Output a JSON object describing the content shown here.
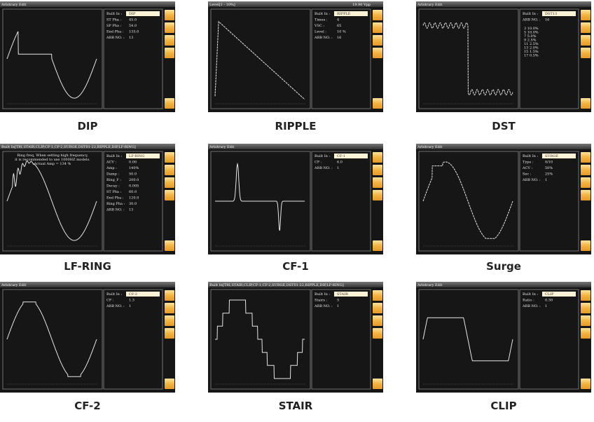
{
  "panels": [
    {
      "caption": "DIP",
      "screen": {
        "title": "Arbitrary Edit",
        "fields": [
          {
            "label": "Built In :",
            "value": "DIP"
          },
          {
            "label": "ST Pha :",
            "value": "45.0"
          },
          {
            "label": "SP Pha :",
            "value": "54.0"
          },
          {
            "label": "End Pha :",
            "value": "135.0"
          },
          {
            "label": "ARB NO. :",
            "value": "13"
          }
        ]
      }
    },
    {
      "caption": "RIPPLE",
      "screen": {
        "title": "Level[1 - 10%]",
        "title_right": "19.90 Vpp",
        "fields": [
          {
            "label": "Built In :",
            "value": "RIPPLE"
          },
          {
            "label": "Times :",
            "value": "4"
          },
          {
            "label": "VSC :",
            "value": "65"
          },
          {
            "label": "Level :",
            "value": "10 %"
          },
          {
            "label": "ARB NO. :",
            "value": "16"
          }
        ]
      }
    },
    {
      "caption": "DST",
      "screen": {
        "title": "Arbitrary Edit",
        "fields": [
          {
            "label": "Built In :",
            "value": "DST13"
          },
          {
            "label": "ARB NO. :",
            "value": "16"
          }
        ],
        "harmonics": [
          "3 10.0%",
          "5 10.0%",
          "7 5.0%",
          "9 2.5%",
          "11 2.5%",
          "13 2.0%",
          "15 1.5%",
          "17 0.5%"
        ]
      }
    },
    {
      "caption": "LF-RING",
      "screen": {
        "title": "Built In[TRI,STAIR,CLIP,CF-1,CF-2,SURGE,DST01-22,RIPPLE,DIP,LF-RING]",
        "note": [
          "Ring freq, When setting high frequency,",
          "it is recommended to use 1000HZ models.",
          "Actual Amp = 134 %"
        ],
        "fields": [
          {
            "label": "Built In :",
            "value": "LF-RING"
          },
          {
            "label": "ACV :",
            "value": "0.00"
          },
          {
            "label": "Amp :",
            "value": "140%"
          },
          {
            "label": "Damp :",
            "value": "50.0"
          },
          {
            "label": "Ring_F :",
            "value": "200.0"
          },
          {
            "label": "Decay :",
            "value": "0.005"
          },
          {
            "label": "ST Pha :",
            "value": "60.0"
          },
          {
            "label": "End Pha :",
            "value": "120.0"
          },
          {
            "label": "Ring Pha :",
            "value": "30.0"
          },
          {
            "label": "ARB NO. :",
            "value": "13"
          }
        ]
      }
    },
    {
      "caption": "CF-1",
      "screen": {
        "title": "Arbitrary Edit",
        "fields": [
          {
            "label": "Built In :",
            "value": "CF-1"
          },
          {
            "label": "CF :",
            "value": "6.0"
          },
          {
            "label": "ARB NO. :",
            "value": "1"
          }
        ]
      }
    },
    {
      "caption": "Surge",
      "screen": {
        "title": "Arbitrary Edit",
        "fields": [
          {
            "label": "Built In :",
            "value": "SURGE"
          },
          {
            "label": "Type :",
            "value": "0/10"
          },
          {
            "label": "ACV :",
            "value": "50%"
          },
          {
            "label": "Sec :",
            "value": "25%"
          },
          {
            "label": "ARB NO. :",
            "value": "1"
          }
        ]
      }
    },
    {
      "caption": "CF-2",
      "screen": {
        "title": "Arbitrary Edit",
        "fields": [
          {
            "label": "Built In :",
            "value": "CF-2"
          },
          {
            "label": "CF :",
            "value": "1.3"
          },
          {
            "label": "ARB NO. :",
            "value": "1"
          }
        ]
      }
    },
    {
      "caption": "STAIR",
      "screen": {
        "title": "Built In[TRI,STAIR,CLIP,CF-1,CF-2,SURGE,DST01-22,RIPPLE,DIP,LF-RING]",
        "fields": [
          {
            "label": "Built In :",
            "value": "STAIR"
          },
          {
            "label": "Stairs :",
            "value": "5"
          },
          {
            "label": "ARB NO. :",
            "value": "1"
          }
        ]
      }
    },
    {
      "caption": "CLIP",
      "screen": {
        "title": "Arbitrary Edit",
        "fields": [
          {
            "label": "Built In :",
            "value": "CLIP"
          },
          {
            "label": "Ratio :",
            "value": "0.30"
          },
          {
            "label": "ARB NO. :",
            "value": "1"
          }
        ]
      }
    }
  ]
}
